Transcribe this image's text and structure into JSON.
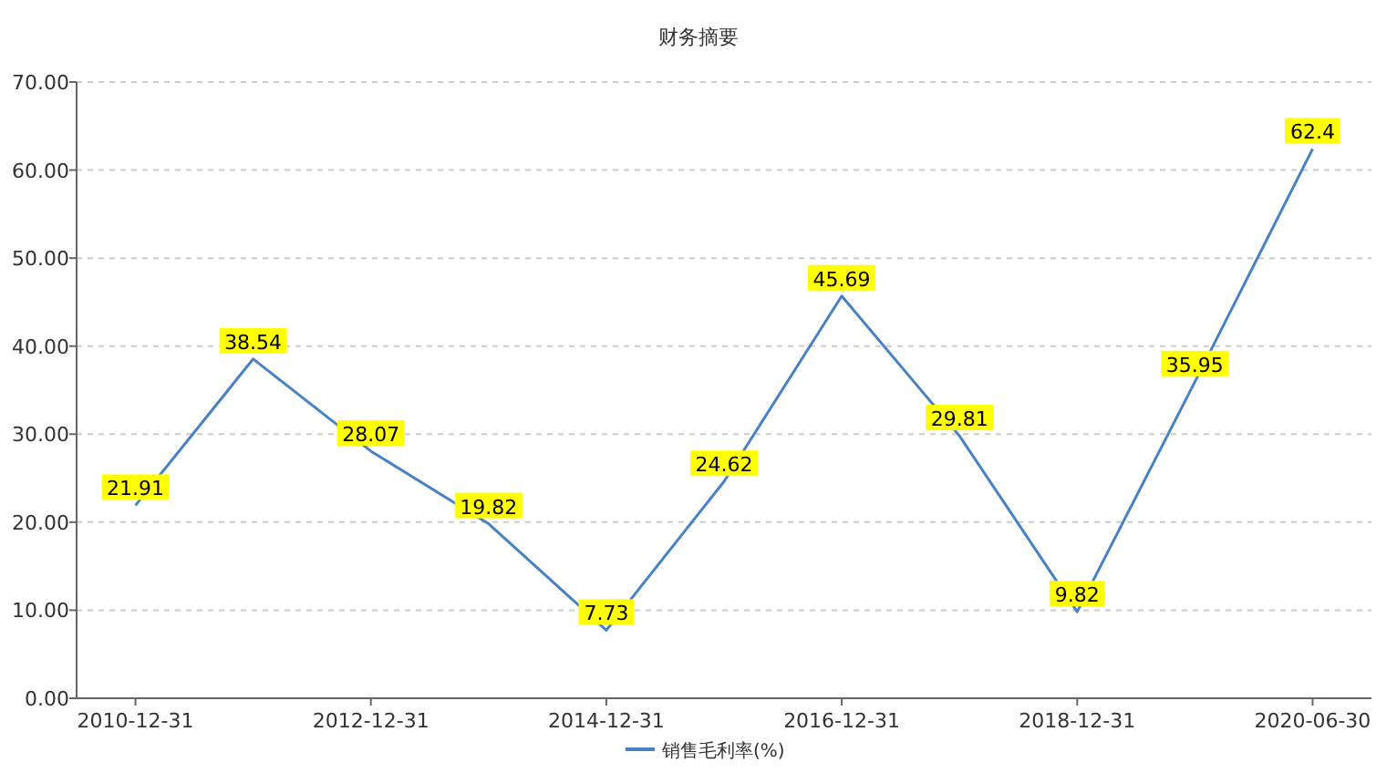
{
  "chart_data": {
    "type": "line",
    "title": "财务摘要",
    "categories": [
      "2010-12-31",
      null,
      "2012-12-31",
      null,
      "2014-12-31",
      null,
      "2016-12-31",
      null,
      "2018-12-31",
      null,
      "2020-06-30"
    ],
    "series": [
      {
        "name": "销售毛利率(%)",
        "color": "#4682c4",
        "values": [
          21.91,
          38.54,
          28.07,
          19.82,
          7.73,
          24.62,
          45.69,
          29.81,
          9.82,
          35.95,
          62.4
        ]
      }
    ],
    "ylim": [
      0,
      70
    ],
    "yticks": [
      {
        "value": 0,
        "label": "0.00"
      },
      {
        "value": 10,
        "label": "10.00"
      },
      {
        "value": 20,
        "label": "20.00"
      },
      {
        "value": 30,
        "label": "30.00"
      },
      {
        "value": 40,
        "label": "40.00"
      },
      {
        "value": 50,
        "label": "50.00"
      },
      {
        "value": 60,
        "label": "60.00"
      },
      {
        "value": 70,
        "label": "70.00"
      }
    ],
    "grid": "y",
    "legend": "bottom",
    "data_labels": true
  }
}
